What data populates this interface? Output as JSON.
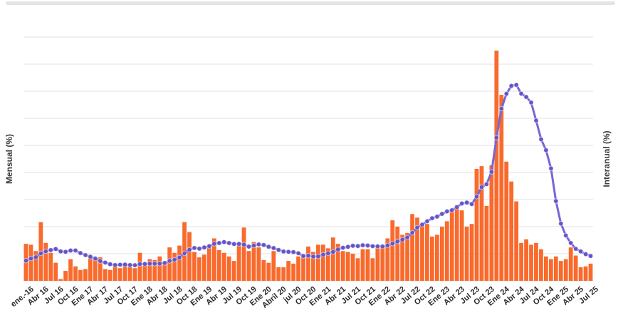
{
  "colors": {
    "background": "#FFFFFF",
    "bar": "#F96A2D",
    "point": "#6355C7",
    "line": "#7667D6",
    "grid": "#E1E1E1",
    "baseline": "#DEDEDE",
    "tick_text": "#2B2B2B",
    "axis_title_text": "#3B3B3B",
    "scrollbar": "#E5E4E4"
  },
  "chart_data": {
    "type": "bar",
    "title": "",
    "x_start": "2016-01",
    "x_end": "2025-07",
    "frequency": "monthly",
    "n_points": 115,
    "grid": true,
    "legend_position": "none",
    "x_tick_labels": [
      "ene.-16",
      "Abr 16",
      "Jul 16",
      "Oct 16",
      "Ene 17",
      "Abr 17",
      "Jul 17",
      "Oct 17",
      "Ene 18",
      "Abr 18",
      "Jul 18",
      "Oct 18",
      "Ene 19",
      "Abr 19",
      "Jul 19",
      "Oct 19",
      "Ene 20",
      "Abril 20",
      "jul 20",
      "Oct 20",
      "Ene 21",
      "Abr 21",
      "Jul 21",
      "Oct 21",
      "Ene 22",
      "Abr 22",
      "Jul 22",
      "Oct 22",
      "Ene 23",
      "Abr 23",
      "Jul 23",
      "Oct 23",
      "Ene 24",
      "Abr 24",
      "Jul 24",
      "Oct 24",
      "Ene 25",
      "Abr 25",
      "Jul 25"
    ],
    "x_tick_every_n_months": 3,
    "left_axis": {
      "label": "Mensual (%)",
      "min": 0,
      "max": 27,
      "grid_step": 3,
      "tick_labels_visible": false
    },
    "right_axis": {
      "label": "Interanual (%)",
      "min": 0,
      "max": 360,
      "grid_step": 40,
      "tick_labels_visible": false
    },
    "series": [
      {
        "name": "Mensual",
        "type": "bar",
        "axis": "left",
        "color": "#F96A2D",
        "values": [
          4.1,
          4.0,
          3.3,
          6.5,
          4.2,
          3.1,
          2.0,
          0.2,
          1.1,
          2.4,
          1.6,
          1.2,
          1.3,
          2.5,
          2.4,
          2.6,
          1.3,
          1.2,
          1.7,
          1.4,
          1.9,
          1.5,
          1.4,
          3.1,
          1.8,
          2.4,
          2.3,
          2.7,
          2.1,
          3.7,
          3.1,
          3.9,
          6.5,
          5.4,
          3.2,
          2.6,
          2.9,
          3.8,
          4.7,
          3.4,
          3.1,
          2.7,
          2.2,
          4.0,
          5.9,
          3.3,
          4.3,
          3.7,
          2.3,
          2.0,
          3.3,
          1.5,
          1.5,
          2.2,
          1.9,
          2.7,
          2.8,
          3.8,
          3.2,
          4.0,
          4.0,
          3.6,
          4.8,
          4.1,
          3.3,
          3.2,
          3.0,
          2.5,
          3.5,
          3.5,
          2.5,
          3.8,
          3.9,
          4.7,
          6.7,
          6.0,
          5.1,
          5.3,
          7.4,
          7.0,
          6.2,
          6.3,
          4.9,
          5.1,
          6.0,
          6.6,
          7.7,
          8.4,
          7.8,
          6.0,
          6.3,
          12.4,
          12.7,
          8.3,
          12.8,
          25.5,
          20.6,
          13.2,
          11.0,
          8.8,
          4.2,
          4.6,
          4.0,
          4.2,
          3.5,
          2.7,
          2.4,
          2.7,
          2.2,
          2.4,
          3.7,
          2.8,
          1.5,
          1.6,
          1.9
        ]
      },
      {
        "name": "Interanual",
        "type": "line",
        "axis": "right",
        "color": "#6355C7",
        "line_color": "#7667D6",
        "values": [
          29.8,
          32.9,
          35.0,
          40.5,
          43.6,
          45.5,
          47.1,
          43.5,
          42.8,
          44.7,
          44.8,
          41.0,
          38.0,
          35.6,
          32.9,
          29.3,
          27.0,
          24.5,
          23.4,
          23.8,
          24.0,
          23.4,
          23.0,
          24.8,
          25.0,
          25.4,
          25.4,
          25.5,
          26.3,
          29.5,
          31.2,
          34.4,
          40.5,
          45.9,
          48.5,
          47.6,
          49.3,
          51.3,
          54.7,
          55.8,
          57.3,
          55.8,
          54.4,
          54.5,
          53.5,
          50.5,
          52.1,
          53.8,
          52.9,
          50.3,
          48.4,
          45.6,
          43.4,
          42.8,
          42.4,
          40.7,
          36.6,
          37.2,
          35.8,
          36.1,
          38.5,
          40.7,
          42.6,
          46.3,
          48.8,
          50.2,
          51.8,
          51.4,
          52.5,
          52.1,
          51.2,
          50.9,
          50.7,
          52.3,
          55.1,
          58.0,
          60.7,
          64.0,
          71.0,
          78.5,
          83.0,
          88.0,
          92.4,
          94.8,
          98.8,
          102.5,
          104.3,
          108.8,
          114.2,
          115.6,
          113.4,
          124.4,
          138.3,
          142.7,
          160.9,
          211.4,
          254.2,
          276.2,
          287.9,
          289.4,
          276.4,
          271.5,
          263.4,
          236.7,
          209.0,
          193.0,
          166.0,
          117.8,
          84.5,
          66.9,
          55.9,
          47.3,
          43.5,
          39.4,
          36.6
        ]
      }
    ]
  }
}
